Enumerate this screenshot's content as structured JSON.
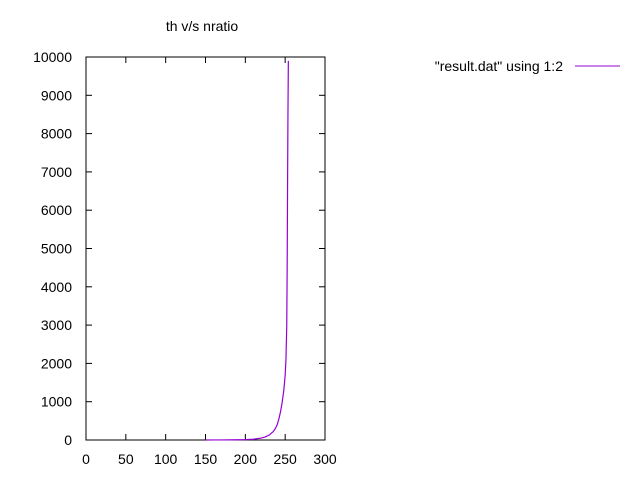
{
  "chart_data": {
    "type": "line",
    "title": "th v/s nratio",
    "xlabel": "",
    "ylabel": "",
    "xlim": [
      0,
      300
    ],
    "ylim": [
      0,
      10000
    ],
    "xticks": [
      0,
      50,
      100,
      150,
      200,
      250,
      300
    ],
    "yticks": [
      0,
      1000,
      2000,
      3000,
      4000,
      5000,
      6000,
      7000,
      8000,
      9000,
      10000
    ],
    "grid": false,
    "legend_position": "top-right",
    "series": [
      {
        "name": "\"result.dat\" using 1:2",
        "color": "#9400d3",
        "x": [
          150,
          160,
          170,
          180,
          190,
          200,
          210,
          220,
          225,
          230,
          235,
          238,
          240,
          242,
          244,
          246,
          248,
          249,
          250,
          251,
          252,
          252.5,
          253,
          253.5,
          254
        ],
        "y": [
          0,
          1,
          2,
          4,
          6,
          10,
          20,
          50,
          80,
          130,
          220,
          310,
          400,
          540,
          720,
          950,
          1250,
          1450,
          1700,
          2100,
          3000,
          4500,
          6600,
          8500,
          9900
        ]
      }
    ]
  }
}
